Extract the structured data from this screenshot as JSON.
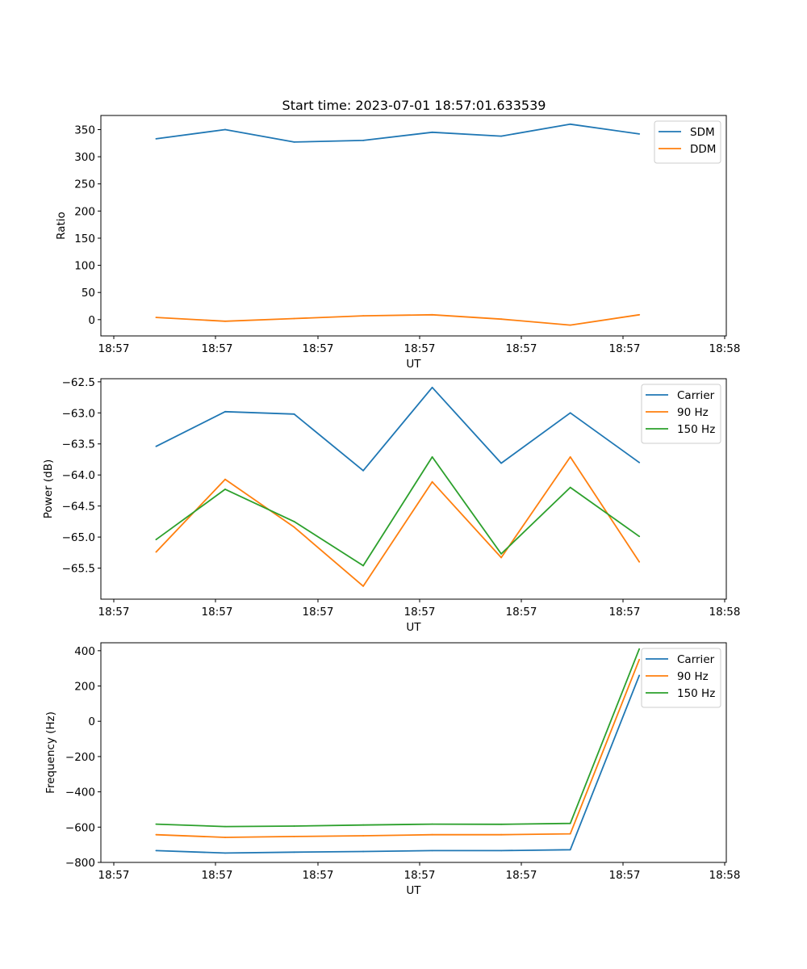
{
  "figure": {
    "title": "Start time: 2023-07-01 18:57:01.633539"
  },
  "colors": {
    "blue": "#1f77b4",
    "orange": "#ff7f0e",
    "green": "#2ca02c"
  },
  "chart_data": [
    {
      "type": "line",
      "title": "Start time: 2023-07-01 18:57:01.633539",
      "xlabel": "UT",
      "ylabel": "Ratio",
      "x_tick_labels": [
        "18:57",
        "18:57",
        "18:57",
        "18:57",
        "18:57",
        "18:57",
        "18:58"
      ],
      "x": [
        1,
        2,
        3,
        4,
        5,
        6,
        7,
        8
      ],
      "xlim": [
        0.2,
        9.26
      ],
      "y_ticks": [
        0,
        50,
        100,
        150,
        200,
        250,
        300,
        350
      ],
      "ylim": [
        -30,
        376
      ],
      "legend": "top-right",
      "series": [
        {
          "name": "SDM",
          "color": "#1f77b4",
          "values": [
            333,
            350,
            327,
            330,
            345,
            338,
            360,
            342
          ]
        },
        {
          "name": "DDM",
          "color": "#ff7f0e",
          "values": [
            4,
            -3,
            2,
            7,
            9,
            1,
            -10,
            9
          ]
        }
      ]
    },
    {
      "type": "line",
      "title": "",
      "xlabel": "UT",
      "ylabel": "Power (dB)",
      "x_tick_labels": [
        "18:57",
        "18:57",
        "18:57",
        "18:57",
        "18:57",
        "18:57",
        "18:58"
      ],
      "x": [
        1,
        2,
        3,
        4,
        5,
        6,
        7,
        8
      ],
      "xlim": [
        0.2,
        9.26
      ],
      "y_ticks": [
        -65.5,
        -65.0,
        -64.5,
        -64.0,
        -63.5,
        -63.0,
        -62.5
      ],
      "y_tick_labels": [
        "−65.5",
        "−65.0",
        "−64.5",
        "−64.0",
        "−63.5",
        "−63.0",
        "−62.5"
      ],
      "ylim": [
        -66.0,
        -62.45
      ],
      "legend": "top-right",
      "series": [
        {
          "name": "Carrier",
          "color": "#1f77b4",
          "values": [
            -63.54,
            -62.98,
            -63.02,
            -63.93,
            -62.59,
            -63.81,
            -63.0,
            -63.8
          ]
        },
        {
          "name": "90 Hz",
          "color": "#ff7f0e",
          "values": [
            -65.24,
            -64.07,
            -64.84,
            -65.79,
            -64.11,
            -65.33,
            -63.71,
            -65.4
          ]
        },
        {
          "name": "150 Hz",
          "color": "#2ca02c",
          "values": [
            -65.04,
            -64.23,
            -64.75,
            -65.46,
            -63.71,
            -65.27,
            -64.2,
            -64.99
          ]
        }
      ]
    },
    {
      "type": "line",
      "title": "",
      "xlabel": "UT",
      "ylabel": "Frequency (Hz)",
      "x_tick_labels": [
        "18:57",
        "18:57",
        "18:57",
        "18:57",
        "18:57",
        "18:57",
        "18:58"
      ],
      "x": [
        1,
        2,
        3,
        4,
        5,
        6,
        7,
        8
      ],
      "xlim": [
        0.2,
        9.26
      ],
      "y_ticks": [
        -800,
        -600,
        -400,
        -200,
        0,
        200,
        400
      ],
      "y_tick_labels": [
        "−800",
        "−600",
        "−400",
        "−200",
        "0",
        "200",
        "400"
      ],
      "ylim": [
        -800,
        445
      ],
      "legend": "top-right",
      "series": [
        {
          "name": "Carrier",
          "color": "#1f77b4",
          "values": [
            -733,
            -747,
            -742,
            -738,
            -733,
            -733,
            -728,
            260
          ]
        },
        {
          "name": "90 Hz",
          "color": "#ff7f0e",
          "values": [
            -643,
            -658,
            -653,
            -649,
            -643,
            -643,
            -638,
            350
          ]
        },
        {
          "name": "150 Hz",
          "color": "#2ca02c",
          "values": [
            -583,
            -597,
            -594,
            -588,
            -583,
            -584,
            -579,
            410
          ]
        }
      ]
    }
  ]
}
